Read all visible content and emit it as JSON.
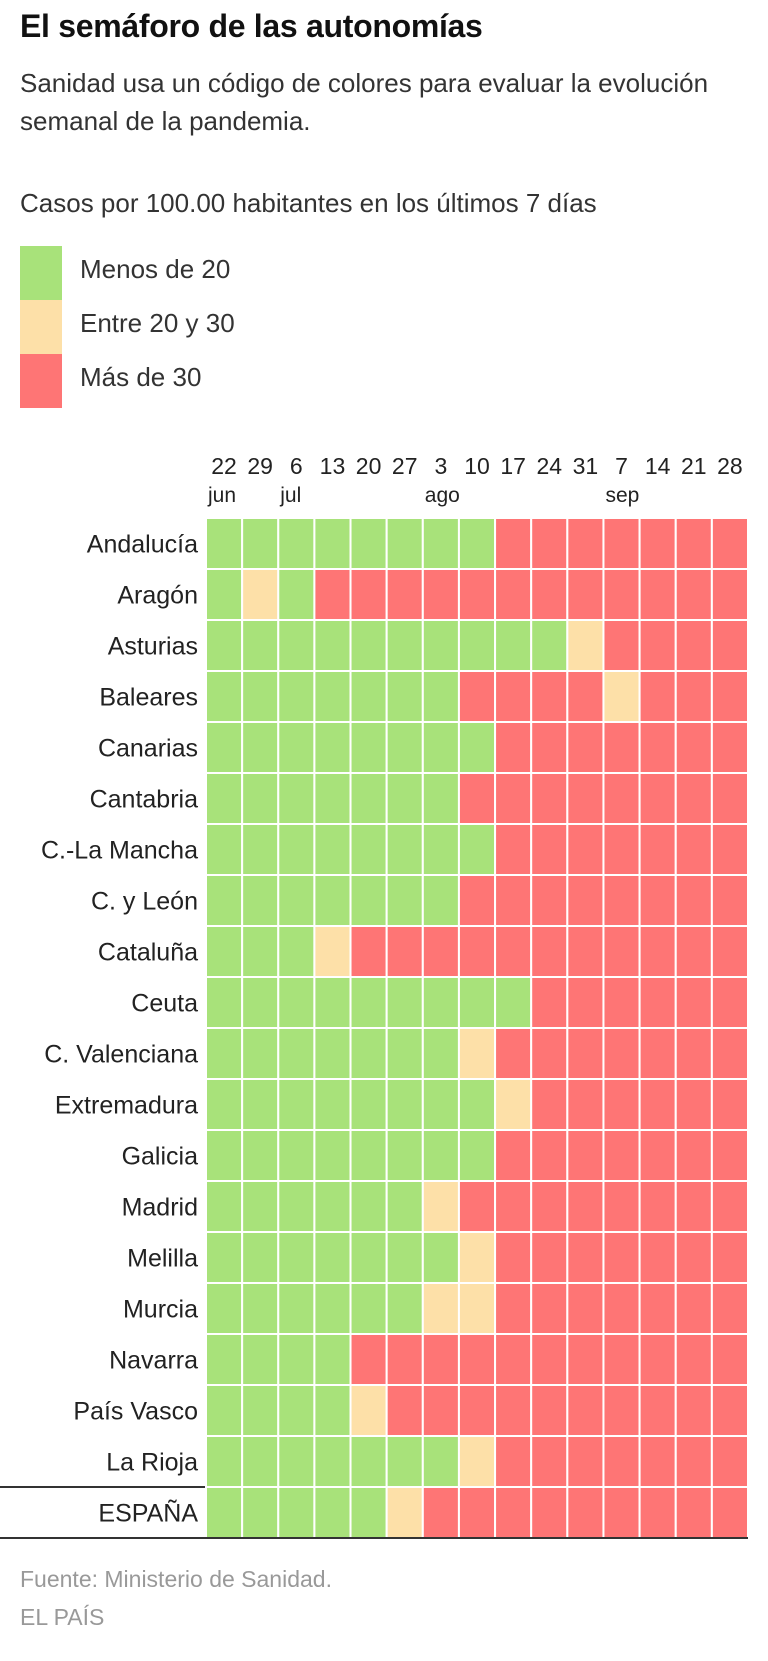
{
  "header": {
    "title": "El semáforo de las autonomías",
    "subtitle": "Sanidad usa un código de colores para evaluar la evolución semanal de la pandemia."
  },
  "legend": {
    "title": "Casos por 100.00 habitantes en los últimos 7 días",
    "items": [
      {
        "label": "Menos de 20",
        "color": "#a8e27a"
      },
      {
        "label": "Entre 20 y 30",
        "color": "#fde0a8"
      },
      {
        "label": "Más de 30",
        "color": "#fe7575"
      }
    ]
  },
  "chart_data": {
    "type": "heatmap",
    "x": [
      "22",
      "29",
      "6",
      "13",
      "20",
      "27",
      "3",
      "10",
      "17",
      "24",
      "31",
      "7",
      "14",
      "21",
      "28"
    ],
    "months": [
      {
        "col": 0,
        "label": "jun"
      },
      {
        "col": 2,
        "label": "jul"
      },
      {
        "col": 6,
        "label": "ago"
      },
      {
        "col": 11,
        "label": "sep"
      }
    ],
    "categories": [
      "Menos de 20",
      "Entre 20 y 30",
      "Más de 30"
    ],
    "rows": [
      {
        "name": "Andalucía",
        "values": [
          0,
          0,
          0,
          0,
          0,
          0,
          0,
          0,
          2,
          2,
          2,
          2,
          2,
          2,
          2
        ]
      },
      {
        "name": "Aragón",
        "values": [
          0,
          1,
          0,
          2,
          2,
          2,
          2,
          2,
          2,
          2,
          2,
          2,
          2,
          2,
          2
        ]
      },
      {
        "name": "Asturias",
        "values": [
          0,
          0,
          0,
          0,
          0,
          0,
          0,
          0,
          0,
          0,
          1,
          2,
          2,
          2,
          2
        ]
      },
      {
        "name": "Baleares",
        "values": [
          0,
          0,
          0,
          0,
          0,
          0,
          0,
          2,
          2,
          2,
          2,
          1,
          2,
          2,
          2
        ]
      },
      {
        "name": "Canarias",
        "values": [
          0,
          0,
          0,
          0,
          0,
          0,
          0,
          0,
          2,
          2,
          2,
          2,
          2,
          2,
          2
        ]
      },
      {
        "name": "Cantabria",
        "values": [
          0,
          0,
          0,
          0,
          0,
          0,
          0,
          2,
          2,
          2,
          2,
          2,
          2,
          2,
          2
        ]
      },
      {
        "name": "C.-La Mancha",
        "values": [
          0,
          0,
          0,
          0,
          0,
          0,
          0,
          0,
          2,
          2,
          2,
          2,
          2,
          2,
          2
        ]
      },
      {
        "name": "C. y León",
        "values": [
          0,
          0,
          0,
          0,
          0,
          0,
          0,
          2,
          2,
          2,
          2,
          2,
          2,
          2,
          2
        ]
      },
      {
        "name": "Cataluña",
        "values": [
          0,
          0,
          0,
          1,
          2,
          2,
          2,
          2,
          2,
          2,
          2,
          2,
          2,
          2,
          2
        ]
      },
      {
        "name": "Ceuta",
        "values": [
          0,
          0,
          0,
          0,
          0,
          0,
          0,
          0,
          0,
          2,
          2,
          2,
          2,
          2,
          2
        ]
      },
      {
        "name": "C. Valenciana",
        "values": [
          0,
          0,
          0,
          0,
          0,
          0,
          0,
          1,
          2,
          2,
          2,
          2,
          2,
          2,
          2
        ]
      },
      {
        "name": "Extremadura",
        "values": [
          0,
          0,
          0,
          0,
          0,
          0,
          0,
          0,
          1,
          2,
          2,
          2,
          2,
          2,
          2
        ]
      },
      {
        "name": "Galicia",
        "values": [
          0,
          0,
          0,
          0,
          0,
          0,
          0,
          0,
          2,
          2,
          2,
          2,
          2,
          2,
          2
        ]
      },
      {
        "name": "Madrid",
        "values": [
          0,
          0,
          0,
          0,
          0,
          0,
          1,
          2,
          2,
          2,
          2,
          2,
          2,
          2,
          2
        ]
      },
      {
        "name": "Melilla",
        "values": [
          0,
          0,
          0,
          0,
          0,
          0,
          0,
          1,
          2,
          2,
          2,
          2,
          2,
          2,
          2
        ]
      },
      {
        "name": "Murcia",
        "values": [
          0,
          0,
          0,
          0,
          0,
          0,
          1,
          1,
          2,
          2,
          2,
          2,
          2,
          2,
          2
        ]
      },
      {
        "name": "Navarra",
        "values": [
          0,
          0,
          0,
          0,
          2,
          2,
          2,
          2,
          2,
          2,
          2,
          2,
          2,
          2,
          2
        ]
      },
      {
        "name": "País Vasco",
        "values": [
          0,
          0,
          0,
          0,
          1,
          2,
          2,
          2,
          2,
          2,
          2,
          2,
          2,
          2,
          2
        ]
      },
      {
        "name": "La Rioja",
        "values": [
          0,
          0,
          0,
          0,
          0,
          0,
          0,
          1,
          2,
          2,
          2,
          2,
          2,
          2,
          2
        ]
      }
    ],
    "total": {
      "name": "ESPAÑA",
      "values": [
        0,
        0,
        0,
        0,
        0,
        1,
        2,
        2,
        2,
        2,
        2,
        2,
        2,
        2,
        2
      ]
    }
  },
  "footer": {
    "source": "Fuente: Ministerio de Sanidad.",
    "brand": "EL PAÍS"
  }
}
